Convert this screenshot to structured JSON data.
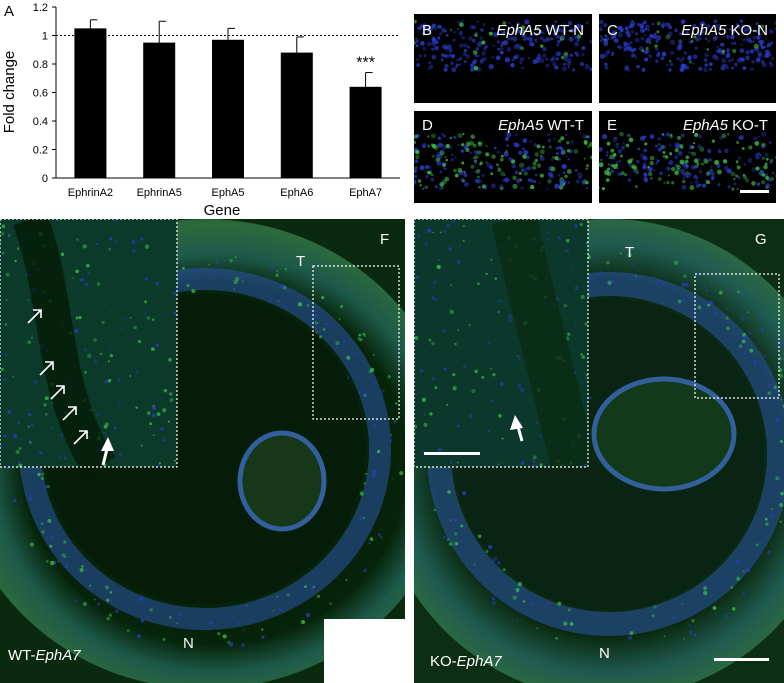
{
  "panel_a": {
    "letter": "A",
    "chart_data": {
      "type": "bar",
      "categories": [
        "EphrinA2",
        "EphrinA5",
        "EphA5",
        "EphA6",
        "EphA7"
      ],
      "values": [
        1.05,
        0.95,
        0.97,
        0.88,
        0.64
      ],
      "errors": [
        0.06,
        0.15,
        0.08,
        0.11,
        0.1
      ],
      "annotations": [
        {
          "category": "EphA7",
          "text": "***"
        }
      ],
      "reference_line": 1.0,
      "xlabel": "Gene",
      "ylabel": "Fold change",
      "ylim": [
        0,
        1.2
      ],
      "yticks": [
        "0",
        "0.2",
        "0.4",
        "0.6",
        "0.8",
        "1",
        "1.2"
      ],
      "bar_color": "#000000"
    }
  },
  "panels": {
    "b": {
      "letter": "B",
      "gene": "EphA5",
      "suffix": " WT-N"
    },
    "c": {
      "letter": "C",
      "gene": "EphA5",
      "suffix": " KO-N"
    },
    "d": {
      "letter": "D",
      "gene": "EphA5",
      "suffix": " WT-T"
    },
    "e": {
      "letter": "E",
      "gene": "EphA5",
      "suffix": " KO-T"
    },
    "f": {
      "letter": "F",
      "top_label": "T",
      "bottom_label": "N",
      "caption_prefix": "WT-",
      "caption_gene": "EphA7"
    },
    "g": {
      "letter": "G",
      "top_label": "T",
      "bottom_label": "N",
      "caption_prefix": "KO-",
      "caption_gene": "EphA7"
    }
  },
  "colors": {
    "nuclei": "#2a3ccc",
    "signal": "#3fc24a",
    "background": "#062008"
  }
}
